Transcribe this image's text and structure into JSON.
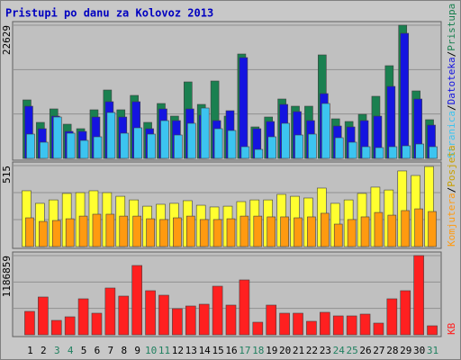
{
  "title": "Pristupi po danu za Kolovoz 2013",
  "legend_separator": "/",
  "chart_data": [
    {
      "type": "bar",
      "ylim": [
        0,
        22629
      ],
      "yticks": [
        22629
      ],
      "series": [
        {
          "name": "Pristupa",
          "color": "#1a8050",
          "values": [
            9938,
            6116,
            8409,
            5810,
            5046,
            8257,
            11620,
            8257,
            10703,
            6116,
            9327,
            7186,
            12996,
            9174,
            13149,
            7186,
            17736,
            5351,
            7033,
            10091,
            8868,
            8868,
            17583,
            6727,
            6269,
            7492,
            10550,
            15749,
            22629,
            11467,
            6575
          ]
        },
        {
          "name": "Datoteka",
          "color": "#1414e0",
          "values": [
            8868,
            5046,
            7186,
            4587,
            4587,
            7033,
            9633,
            7033,
            9633,
            5046,
            8409,
            6422,
            8409,
            7339,
            6422,
            8104,
            17125,
            5046,
            6269,
            9174,
            7951,
            6422,
            11009,
            5504,
            5351,
            6422,
            7186,
            12232,
            21253,
            10091,
            5657
          ]
        },
        {
          "name": "Stranica",
          "color": "#3cc4f0",
          "values": [
            4128,
            2752,
            7033,
            4281,
            3058,
            3670,
            7798,
            4281,
            5199,
            4128,
            6422,
            3975,
            5963,
            8562,
            5046,
            4740,
            1988,
            1529,
            3670,
            5963,
            3975,
            4128,
            9327,
            3517,
            2752,
            1988,
            1835,
            1988,
            2141,
            2446,
            1988
          ]
        }
      ]
    },
    {
      "type": "bar",
      "ylim": [
        0,
        515
      ],
      "yticks": [
        515
      ],
      "series": [
        {
          "name": "Posjeta",
          "color": "#ffff30",
          "values": [
            355,
            275,
            297,
            338,
            343,
            355,
            343,
            320,
            297,
            257,
            269,
            275,
            292,
            263,
            252,
            257,
            286,
            297,
            297,
            332,
            320,
            309,
            372,
            275,
            297,
            338,
            378,
            360,
            481,
            452,
            509
          ]
        },
        {
          "name": "Komjutera",
          "color": "#ff9a10",
          "values": [
            183,
            160,
            166,
            177,
            194,
            206,
            206,
            194,
            194,
            177,
            172,
            183,
            194,
            172,
            172,
            177,
            194,
            194,
            189,
            189,
            183,
            189,
            212,
            143,
            172,
            189,
            217,
            200,
            229,
            240,
            223
          ]
        }
      ]
    },
    {
      "type": "bar",
      "ylim": [
        0,
        1186859
      ],
      "yticks": [
        1186859
      ],
      "categories": [
        "1",
        "2",
        "3",
        "4",
        "5",
        "6",
        "7",
        "8",
        "9",
        "10",
        "11",
        "12",
        "13",
        "14",
        "15",
        "16",
        "17",
        "18",
        "19",
        "20",
        "21",
        "22",
        "23",
        "24",
        "25",
        "26",
        "27",
        "28",
        "29",
        "30",
        "31"
      ],
      "category_colors": [
        "#000",
        "#000",
        "#208060",
        "#208060",
        "#000",
        "#000",
        "#000",
        "#000",
        "#000",
        "#208060",
        "#208060",
        "#000",
        "#000",
        "#000",
        "#000",
        "#000",
        "#208060",
        "#208060",
        "#000",
        "#000",
        "#000",
        "#000",
        "#000",
        "#208060",
        "#208060",
        "#000",
        "#000",
        "#000",
        "#000",
        "#000",
        "#208060"
      ],
      "series": [
        {
          "name": "KB",
          "color": "#ff2020",
          "values": [
            350662,
            566454,
            215792,
            269740,
            539480,
            323688,
            701324,
            579941,
            1038499,
            660863,
            593428,
            391123,
            431584,
            458558,
            728298,
            445071,
            822707,
            188818,
            445071,
            323688,
            323688,
            202305,
            337175,
            283227,
            283227,
            310201,
            175331,
            539480,
            660863,
            1186859,
            134870
          ]
        }
      ]
    }
  ]
}
